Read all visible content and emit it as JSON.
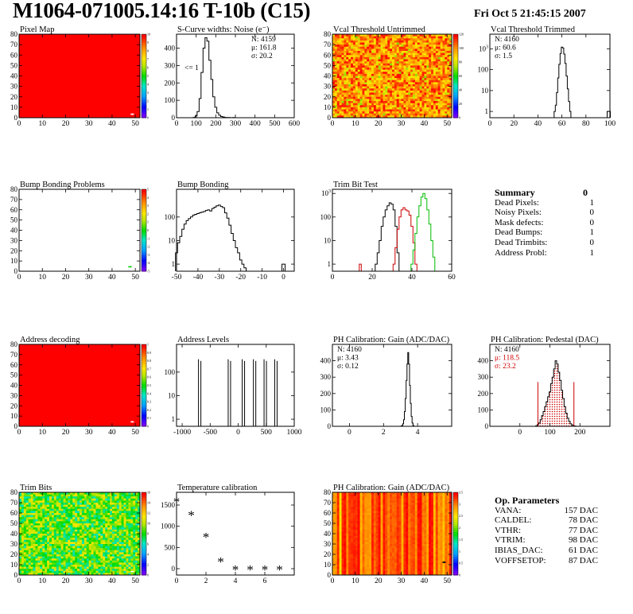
{
  "header": {
    "title": "M1064-071005.14:16 T-10b (C15)",
    "date": "Fri Oct  5 21:45:15 2007"
  },
  "colors": {
    "curve": "#000000",
    "red": "#cc0000",
    "green": "#00bb00",
    "pedestal_fill": "#cc0000"
  },
  "chart_data": [
    {
      "type": "heatmap",
      "title": "Pixel Map",
      "xlim": [
        0,
        52
      ],
      "ylim": [
        0,
        80
      ],
      "xticks": [
        0,
        10,
        20,
        30,
        40,
        50
      ],
      "yticks": [
        0,
        10,
        20,
        30,
        40,
        50,
        60,
        70,
        80
      ],
      "fill": "uniform-max",
      "palette_max": 10,
      "palette_ticks": [
        "0",
        "1",
        "2",
        "3",
        "4",
        "5",
        "6",
        "7",
        "8",
        "9",
        "10"
      ],
      "marks": [
        {
          "x": 48,
          "y": 3,
          "color": "#ffffff"
        }
      ]
    },
    {
      "type": "line",
      "title": "S-Curve widths: Noise (e⁻)",
      "xlim": [
        0,
        600
      ],
      "ylim": [
        0,
        480
      ],
      "xticks": [
        0,
        100,
        200,
        300,
        400,
        500,
        600
      ],
      "yticks": [
        0,
        100,
        200,
        300,
        400
      ],
      "stats": [
        "N: 4159",
        "μ: 161.8",
        "σ: 20.2"
      ],
      "annotation": "<= 1",
      "x": [
        80,
        90,
        100,
        110,
        120,
        130,
        140,
        150,
        160,
        170,
        180,
        190,
        200,
        210,
        220,
        230,
        240,
        250,
        260,
        270,
        280,
        290,
        300
      ],
      "values": [
        0,
        2,
        10,
        35,
        110,
        260,
        400,
        460,
        440,
        330,
        220,
        120,
        60,
        28,
        14,
        7,
        4,
        2,
        1,
        1,
        0,
        1,
        0
      ]
    },
    {
      "type": "heatmap",
      "title": "Vcal Threshold Untrimmed",
      "xlim": [
        0,
        52
      ],
      "ylim": [
        0,
        80
      ],
      "xticks": [
        0,
        10,
        20,
        30,
        40,
        50
      ],
      "yticks": [
        0,
        10,
        20,
        30,
        40,
        50,
        60,
        70,
        80
      ],
      "fill": "noise-orange",
      "palette_ticks": [
        "0",
        "20",
        "40",
        "60",
        "80",
        "100",
        "120"
      ]
    },
    {
      "type": "line",
      "title": "Vcal Threshold Trimmed",
      "yscale": "log",
      "xlim": [
        0,
        100
      ],
      "ylim": [
        0.5,
        5000
      ],
      "xticks": [
        0,
        20,
        40,
        60,
        80,
        100
      ],
      "yticks": [
        1,
        10,
        100,
        1000
      ],
      "stats": [
        "N: 4160",
        "μ: 60.6",
        "σ:  1.5"
      ],
      "x": [
        54,
        55,
        56,
        57,
        58,
        59,
        60,
        61,
        62,
        63,
        64,
        65,
        66,
        67,
        68
      ],
      "values": [
        1,
        2,
        8,
        40,
        180,
        600,
        1200,
        1100,
        560,
        200,
        50,
        12,
        3,
        1,
        0
      ],
      "extra_bin": {
        "x": 99,
        "value": 1
      }
    },
    {
      "type": "heatmap",
      "title": "Bump Bonding Problems",
      "xlim": [
        0,
        52
      ],
      "ylim": [
        0,
        80
      ],
      "xticks": [
        0,
        10,
        20,
        30,
        40,
        50
      ],
      "yticks": [
        0,
        10,
        20,
        30,
        40,
        50,
        60,
        70,
        80
      ],
      "fill": "empty",
      "palette_ticks": [
        "-5",
        "-4",
        "-3",
        "-2",
        "-1",
        "0",
        "1",
        "2",
        "3",
        "4",
        "5"
      ],
      "marks": [
        {
          "x": 47,
          "y": 4,
          "color": "#00cc00"
        }
      ]
    },
    {
      "type": "line",
      "title": "Bump Bonding",
      "yscale": "log",
      "xlim": [
        -50,
        5
      ],
      "ylim": [
        0.5,
        1500
      ],
      "xticks": [
        -50,
        -40,
        -30,
        -20,
        -10,
        0
      ],
      "yticks": [
        1,
        10,
        100
      ],
      "x": [
        -50,
        -49,
        -48,
        -47,
        -46,
        -45,
        -44,
        -43,
        -42,
        -41,
        -40,
        -39,
        -38,
        -37,
        -36,
        -35,
        -34,
        -33,
        -32,
        -31,
        -30,
        -29,
        -28,
        -27,
        -26,
        -25,
        -24,
        -23,
        -22,
        -21,
        -20,
        -19,
        -18,
        -17,
        -16,
        -15
      ],
      "values": [
        3,
        8,
        15,
        30,
        50,
        70,
        85,
        100,
        120,
        130,
        140,
        150,
        160,
        170,
        190,
        200,
        180,
        230,
        260,
        300,
        320,
        280,
        250,
        150,
        90,
        45,
        20,
        10,
        5,
        3,
        1.5,
        1,
        0.7,
        0,
        0,
        0
      ],
      "extra_bin": {
        "x": 0,
        "value": 1
      }
    },
    {
      "type": "line",
      "title": "Trim Bit Test",
      "yscale": "log",
      "xlim": [
        0,
        60
      ],
      "ylim": [
        0.5,
        1500
      ],
      "xticks": [
        0,
        20,
        40,
        60
      ],
      "yticks": [
        1,
        10,
        100,
        1000
      ],
      "series": [
        {
          "color": "#000000",
          "x": [
            22,
            23,
            24,
            25,
            26,
            27,
            28,
            29,
            30,
            31,
            32,
            33
          ],
          "values": [
            1,
            3,
            10,
            40,
            100,
            200,
            300,
            400,
            350,
            200,
            40,
            3
          ]
        },
        {
          "color": "#cc0000",
          "x": [
            13,
            14,
            15,
            30,
            31,
            32,
            33,
            34,
            35,
            36,
            37,
            38,
            39,
            40,
            41,
            42,
            43
          ],
          "values": [
            0,
            1,
            0,
            0,
            1,
            5,
            30,
            100,
            200,
            250,
            200,
            180,
            120,
            40,
            8,
            1,
            0
          ]
        },
        {
          "color": "#00bb00",
          "x": [
            40,
            41,
            42,
            43,
            44,
            45,
            46,
            47,
            48,
            49,
            50,
            51,
            52
          ],
          "values": [
            1,
            4,
            20,
            100,
            300,
            700,
            1000,
            600,
            200,
            50,
            10,
            2,
            0
          ]
        }
      ]
    },
    {
      "type": "heatmap",
      "title": "Address decoding",
      "xlim": [
        0,
        52
      ],
      "ylim": [
        0,
        80
      ],
      "xticks": [
        0,
        10,
        20,
        30,
        40,
        50
      ],
      "yticks": [
        0,
        10,
        20,
        30,
        40,
        50,
        60,
        70,
        80
      ],
      "fill": "uniform-max",
      "palette_max": 1,
      "palette_ticks": [
        "0",
        "0.1",
        "0.2",
        "0.3",
        "0.4",
        "0.5",
        "0.6",
        "0.7",
        "0.8",
        "0.9",
        "1"
      ],
      "marks": [
        {
          "x": 48,
          "y": 4,
          "color": "#ffffff"
        }
      ]
    },
    {
      "type": "line",
      "title": "Address Levels",
      "yscale": "log",
      "xlim": [
        -1100,
        1000
      ],
      "ylim": [
        0.5,
        1500
      ],
      "xticks": [
        -1000,
        -500,
        0,
        500,
        1000
      ],
      "yticks": [
        1,
        10,
        100
      ],
      "peaks": [
        {
          "x": -680,
          "value": 350
        },
        {
          "x": -150,
          "value": 350
        },
        {
          "x": 100,
          "value": 350
        },
        {
          "x": 300,
          "value": 350
        },
        {
          "x": 490,
          "value": 350
        },
        {
          "x": 680,
          "value": 350
        }
      ]
    },
    {
      "type": "line",
      "title": "PH Calibration: Gain (ADC/DAC)",
      "xlim": [
        -1,
        6
      ],
      "ylim": [
        0,
        500
      ],
      "xticks": [
        0,
        2,
        4
      ],
      "yticks": [
        0,
        100,
        200,
        300,
        400
      ],
      "stats": [
        "N: 4160",
        "μ: 3.43",
        "σ: 0.12"
      ],
      "x": [
        3.0,
        3.05,
        3.1,
        3.15,
        3.2,
        3.25,
        3.3,
        3.35,
        3.4,
        3.45,
        3.5,
        3.55,
        3.6,
        3.65,
        3.7,
        3.75,
        3.8
      ],
      "values": [
        0,
        2,
        5,
        15,
        40,
        90,
        170,
        280,
        380,
        450,
        380,
        250,
        140,
        60,
        20,
        5,
        0
      ]
    },
    {
      "type": "area",
      "title": "PH Calibration: Pedestal (DAC)",
      "xlim": [
        -100,
        300
      ],
      "ylim": [
        0,
        500
      ],
      "xticks": [
        0,
        100,
        200
      ],
      "yticks": [
        0,
        100,
        200,
        300,
        400
      ],
      "stats": [
        "N: 4160",
        "μ: 118.5",
        "σ: 23.2"
      ],
      "stats_colors": [
        "#000000",
        "#cc0000",
        "#cc0000"
      ],
      "x": [
        50,
        55,
        60,
        65,
        70,
        75,
        80,
        85,
        90,
        95,
        100,
        105,
        110,
        115,
        120,
        125,
        130,
        135,
        140,
        145,
        150,
        155,
        160,
        165,
        170,
        175,
        180,
        185,
        190
      ],
      "values": [
        0,
        3,
        10,
        20,
        40,
        65,
        90,
        120,
        150,
        180,
        210,
        260,
        300,
        350,
        400,
        380,
        330,
        280,
        220,
        170,
        120,
        80,
        50,
        30,
        15,
        8,
        3,
        1,
        0
      ],
      "cut_lines": [
        60,
        180
      ],
      "cut_height": 270
    },
    {
      "type": "heatmap",
      "title": "Trim Bits",
      "xlim": [
        0,
        52
      ],
      "ylim": [
        0,
        80
      ],
      "xticks": [
        0,
        10,
        20,
        30,
        40,
        50
      ],
      "yticks": [
        0,
        10,
        20,
        30,
        40,
        50,
        60,
        70,
        80
      ],
      "fill": "noise-green",
      "palette_ticks": [
        "0",
        "2",
        "4",
        "6",
        "8",
        "10",
        "12",
        "14",
        "16"
      ],
      "marks": [
        {
          "x": 48,
          "y": 3,
          "color": "#ffffff"
        }
      ]
    },
    {
      "type": "scatter",
      "title": "Temperature calibration",
      "xlim": [
        0,
        8
      ],
      "ylim": [
        -150,
        1800
      ],
      "xticks": [
        0,
        2,
        4,
        6
      ],
      "yticks": [
        0,
        500,
        1000,
        1500
      ],
      "x": [
        0,
        1,
        2,
        3,
        4,
        5,
        6,
        7
      ],
      "values": [
        1600,
        1280,
        770,
        190,
        0,
        0,
        0,
        0
      ]
    },
    {
      "type": "heatmap",
      "title": "PH Calibration: Gain (ADC/DAC)",
      "xlim": [
        0,
        52
      ],
      "ylim": [
        0,
        80
      ],
      "xticks": [
        0,
        10,
        20,
        30,
        40,
        50
      ],
      "yticks": [
        0,
        10,
        20,
        30,
        40,
        50,
        60,
        70,
        80
      ],
      "fill": "column-stripes",
      "palette_ticks": [
        "0",
        "0.5",
        "1",
        "1.5",
        "2",
        "2.5",
        "3",
        "3.5"
      ],
      "marks": [
        {
          "x": 48,
          "y": 12,
          "color": "#000000"
        }
      ]
    }
  ],
  "summary": {
    "title": "Summary",
    "total": "0",
    "rows": [
      {
        "label": "Dead Pixels:",
        "value": "1"
      },
      {
        "label": "Noisy Pixels:",
        "value": "0"
      },
      {
        "label": "Mask defects:",
        "value": "0"
      },
      {
        "label": "Dead Bumps:",
        "value": "1"
      },
      {
        "label": "Dead Trimbits:",
        "value": "0"
      },
      {
        "label": "Address Probl:",
        "value": "1"
      }
    ]
  },
  "op_params": {
    "title": "Op. Parameters",
    "rows": [
      {
        "label": "VANA:",
        "value": "157 DAC"
      },
      {
        "label": "CALDEL:",
        "value": "78 DAC"
      },
      {
        "label": "VTHR:",
        "value": "77 DAC"
      },
      {
        "label": "VTRIM:",
        "value": "98 DAC"
      },
      {
        "label": "IBIAS_DAC:",
        "value": "61 DAC"
      },
      {
        "label": "VOFFSETOP:",
        "value": "87 DAC"
      }
    ]
  }
}
